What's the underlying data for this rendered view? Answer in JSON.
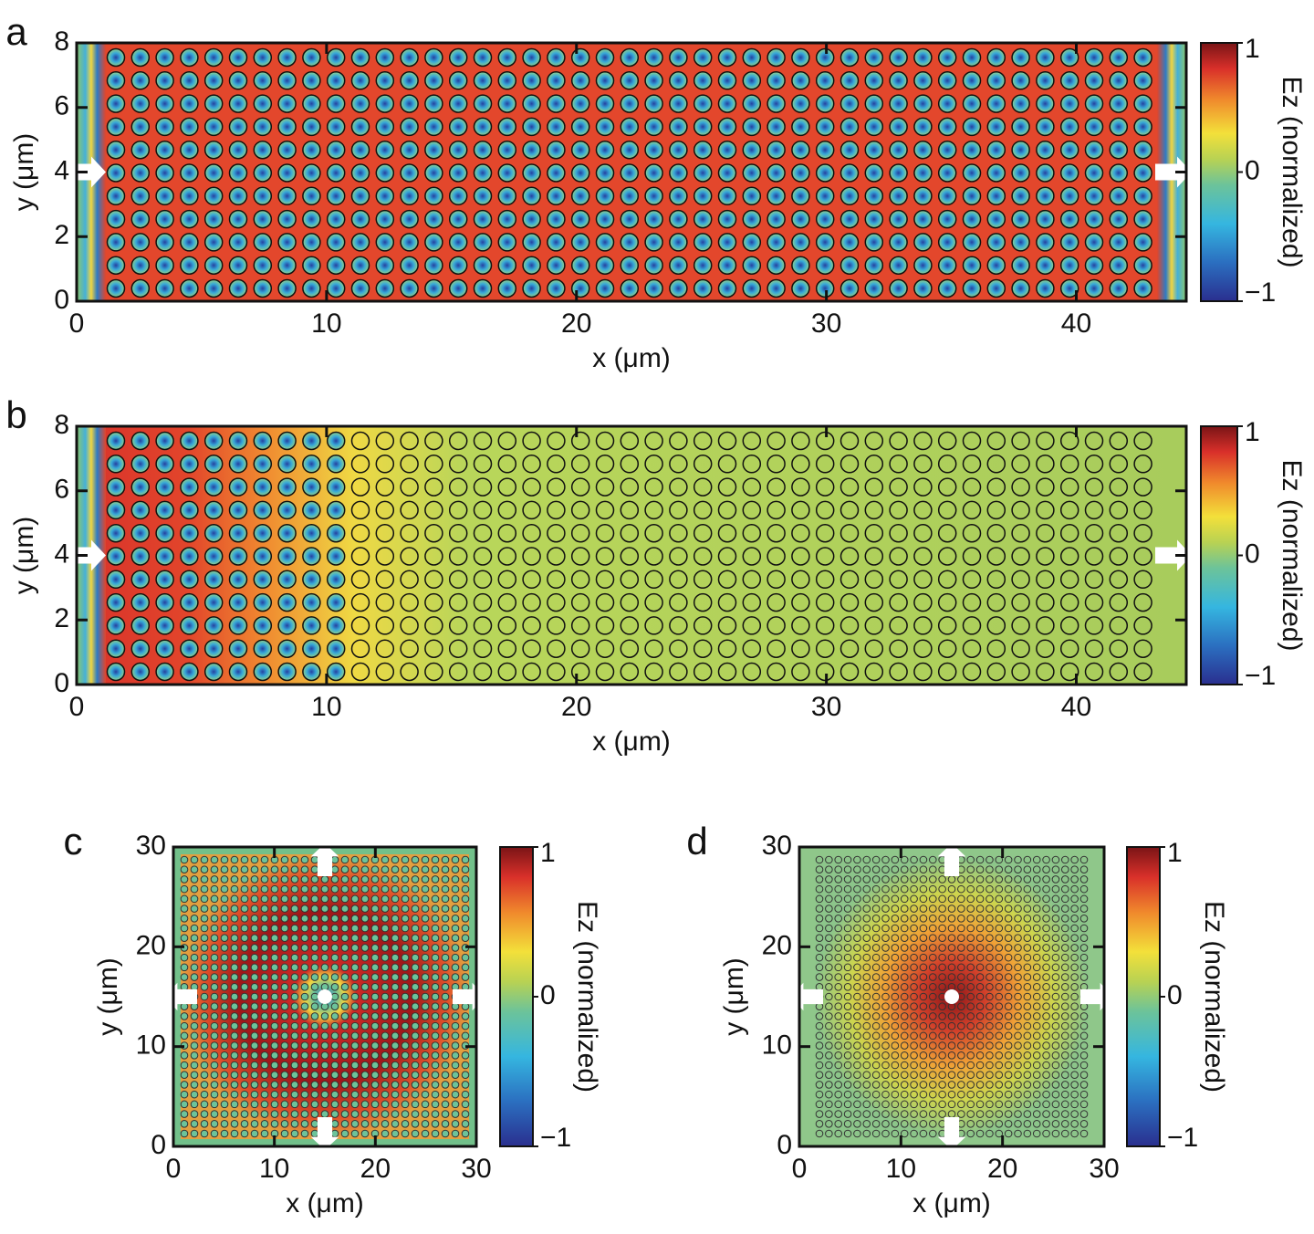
{
  "chart_data": [
    {
      "type": "heatmap",
      "panel_label": "a",
      "xlabel": "x (μm)",
      "ylabel": "y (μm)",
      "colorbar_label": "Ez (normalized)",
      "xlim": [
        0,
        44.4
      ],
      "ylim": [
        0,
        8
      ],
      "xticks": [
        0,
        10,
        20,
        30,
        40
      ],
      "yticks": [
        0,
        2,
        4,
        6,
        8
      ],
      "clim": [
        -1,
        1
      ],
      "cticks": [
        {
          "value": -1,
          "label": "−1"
        },
        0,
        1
      ]
    },
    {
      "type": "heatmap",
      "panel_label": "b",
      "xlabel": "x (μm)",
      "ylabel": "y (μm)",
      "colorbar_label": "Ez (normalized)",
      "xlim": [
        0,
        44.4
      ],
      "ylim": [
        0,
        8
      ],
      "xticks": [
        0,
        10,
        20,
        30,
        40
      ],
      "yticks": [
        0,
        2,
        4,
        6,
        8
      ],
      "clim": [
        -1,
        1
      ],
      "cticks": [
        {
          "value": -1,
          "label": "−1"
        },
        0,
        1
      ]
    },
    {
      "type": "heatmap",
      "panel_label": "c",
      "xlabel": "x (μm)",
      "ylabel": "y (μm)",
      "colorbar_label": "Ez (normalized)",
      "xlim": [
        0,
        30
      ],
      "ylim": [
        0,
        30
      ],
      "xticks": [
        0,
        10,
        20,
        30
      ],
      "yticks": [
        0,
        10,
        20,
        30
      ],
      "clim": [
        -1,
        1
      ],
      "cticks": [
        {
          "value": -1,
          "label": "−1"
        },
        0,
        1
      ]
    },
    {
      "type": "heatmap",
      "panel_label": "d",
      "xlabel": "x (μm)",
      "ylabel": "y (μm)",
      "colorbar_label": "Ez (normalized)",
      "xlim": [
        0,
        30
      ],
      "ylim": [
        0,
        30
      ],
      "xticks": [
        0,
        10,
        20,
        30
      ],
      "yticks": [
        0,
        10,
        20,
        30
      ],
      "clim": [
        -1,
        1
      ],
      "cticks": [
        {
          "value": -1,
          "label": "−1"
        },
        0,
        1
      ]
    }
  ]
}
